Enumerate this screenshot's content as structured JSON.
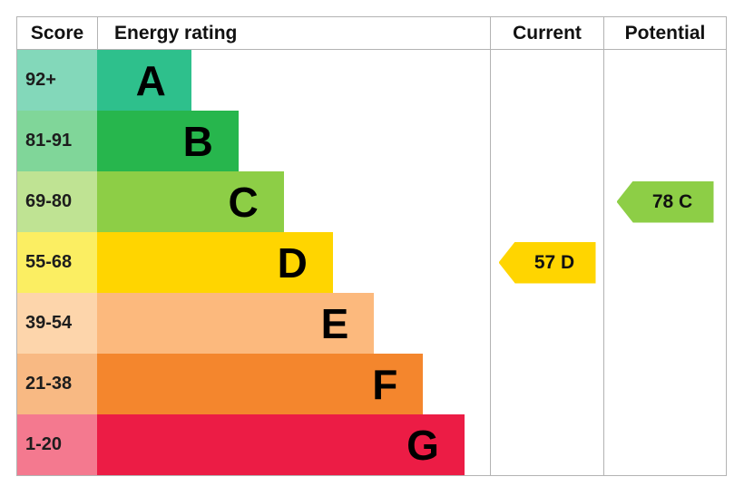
{
  "header": {
    "score": "Score",
    "energy_rating": "Energy rating",
    "current": "Current",
    "potential": "Potential"
  },
  "chart_data": {
    "type": "bar",
    "title": "Energy rating",
    "categories": [
      "A",
      "B",
      "C",
      "D",
      "E",
      "F",
      "G"
    ],
    "bands": [
      {
        "letter": "A",
        "score_range": "92+",
        "color": "#2ec08c",
        "tint": "#83d8ba",
        "width_pct": 24
      },
      {
        "letter": "B",
        "score_range": "81-91",
        "color": "#27b64d",
        "tint": "#80d699",
        "width_pct": 36
      },
      {
        "letter": "C",
        "score_range": "69-80",
        "color": "#8dce46",
        "tint": "#bfe393",
        "width_pct": 47.5
      },
      {
        "letter": "D",
        "score_range": "55-68",
        "color": "#ffd500",
        "tint": "#fbee62",
        "width_pct": 60
      },
      {
        "letter": "E",
        "score_range": "39-54",
        "color": "#fcb97d",
        "tint": "#fdd5ab",
        "width_pct": 70.5
      },
      {
        "letter": "F",
        "score_range": "21-38",
        "color": "#f4862d",
        "tint": "#f8b983",
        "width_pct": 83
      },
      {
        "letter": "G",
        "score_range": "1-20",
        "color": "#ec1c45",
        "tint": "#f4798f",
        "width_pct": 93.5
      }
    ],
    "current": {
      "value": 57,
      "band": "D",
      "label": "57 D"
    },
    "potential": {
      "value": 78,
      "band": "C",
      "label": "78 C"
    }
  }
}
